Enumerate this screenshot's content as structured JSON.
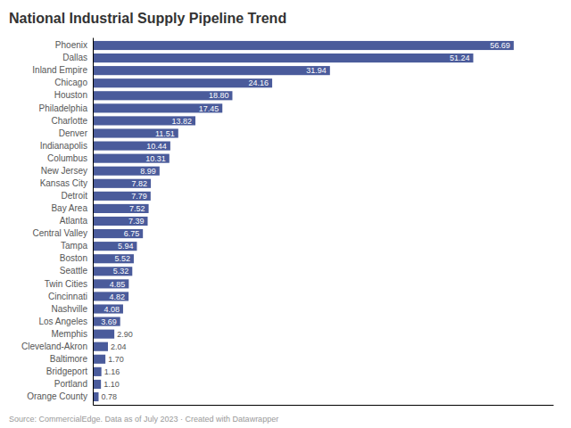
{
  "chart_data": {
    "type": "bar",
    "orientation": "horizontal",
    "title": "National Industrial Supply Pipeline Trend",
    "annotations": [
      "Source: CommercialEdge. Data as of July 2023 · Created with Datawrapper"
    ],
    "categories": [
      "Phoenix",
      "Dallas",
      "Inland Empire",
      "Chicago",
      "Houston",
      "Philadelphia",
      "Charlotte",
      "Denver",
      "Indianapolis",
      "Columbus",
      "New Jersey",
      "Kansas City",
      "Detroit",
      "Bay Area",
      "Atlanta",
      "Central Valley",
      "Tampa",
      "Boston",
      "Seattle",
      "Twin Cities",
      "Cincinnati",
      "Nashville",
      "Los Angeles",
      "Memphis",
      "Cleveland-Akron",
      "Baltimore",
      "Bridgeport",
      "Portland",
      "Orange County"
    ],
    "values": [
      56.69,
      51.24,
      31.94,
      24.16,
      18.8,
      17.45,
      13.82,
      11.51,
      10.44,
      10.31,
      8.99,
      7.82,
      7.79,
      7.52,
      7.39,
      6.75,
      5.94,
      5.52,
      5.32,
      4.85,
      4.82,
      4.08,
      3.69,
      2.9,
      2.04,
      1.7,
      1.16,
      1.1,
      0.78
    ],
    "value_labels": [
      "56.69",
      "51.24",
      "31.94",
      "24.16",
      "18.80",
      "17.45",
      "13.82",
      "11.51",
      "10.44",
      "10.31",
      "8.99",
      "7.82",
      "7.79",
      "7.52",
      "7.39",
      "6.75",
      "5.94",
      "5.52",
      "5.32",
      "4.85",
      "4.82",
      "4.08",
      "3.69",
      "2.90",
      "2.04",
      "1.70",
      "1.16",
      "1.10",
      "0.78"
    ],
    "color": "#4a5b9b",
    "xlim": [
      0,
      62.0
    ],
    "data_labels": true,
    "tick_labels": "y",
    "grid": false
  }
}
